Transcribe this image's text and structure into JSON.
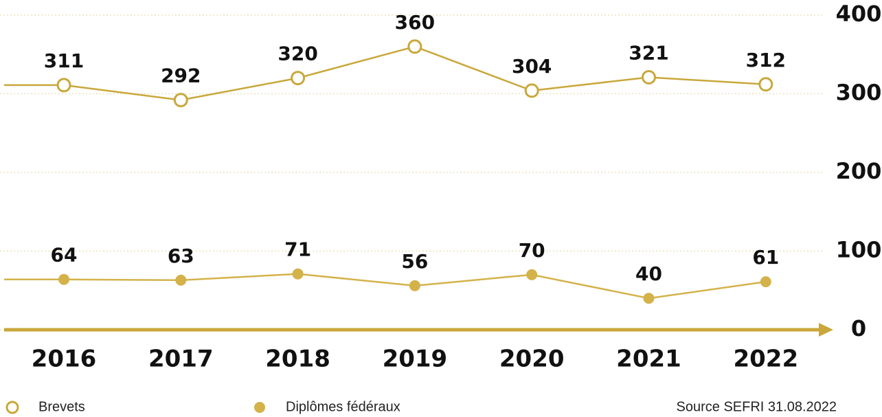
{
  "chart_data": {
    "type": "line",
    "categories": [
      "2016",
      "2017",
      "2018",
      "2019",
      "2020",
      "2021",
      "2022"
    ],
    "series": [
      {
        "name": "Brevets",
        "color": "#c9a73a",
        "marker": "open",
        "values": [
          311,
          292,
          320,
          360,
          304,
          321,
          312
        ]
      },
      {
        "name": "Diplômes fédéraux",
        "color": "#d4b24a",
        "marker": "filled",
        "values": [
          64,
          63,
          71,
          56,
          70,
          40,
          61
        ]
      }
    ],
    "ylim": [
      0,
      400
    ],
    "yticks": [
      0,
      100,
      200,
      300,
      400
    ],
    "grid": true,
    "source": "Source SEFRI 31.08.2022"
  }
}
